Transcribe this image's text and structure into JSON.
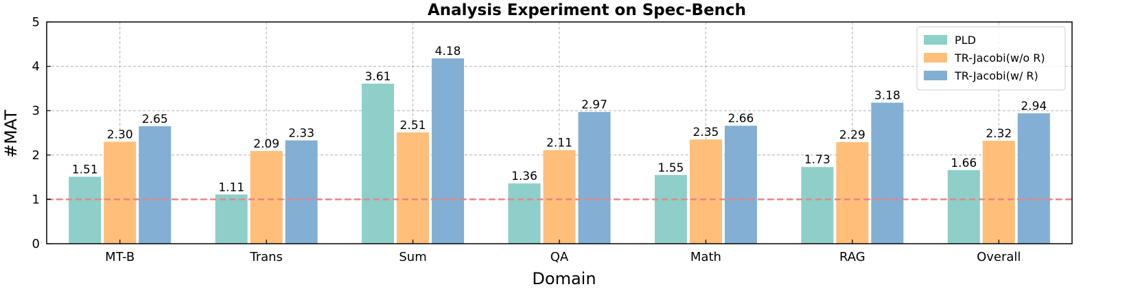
{
  "chart_data": {
    "type": "bar",
    "title": "Analysis Experiment on Spec-Bench",
    "xlabel": "Domain",
    "ylabel": "#MAT",
    "ylim": [
      0,
      5
    ],
    "yticks": [
      0,
      1,
      2,
      3,
      4,
      5
    ],
    "categories": [
      "MT-B",
      "Trans",
      "Sum",
      "QA",
      "Math",
      "RAG",
      "Overall"
    ],
    "series": [
      {
        "name": "PLD",
        "color": "#8ecfc9",
        "values": [
          1.51,
          1.11,
          3.61,
          1.36,
          1.55,
          1.73,
          1.66
        ],
        "labels": [
          "1.51",
          "1.11",
          "3.61",
          "1.36",
          "1.55",
          "1.73",
          "1.66"
        ]
      },
      {
        "name": "TR-Jacobi(w/o R)",
        "color": "#ffbe7a",
        "values": [
          2.3,
          2.09,
          2.51,
          2.11,
          2.35,
          2.29,
          2.32
        ],
        "labels": [
          "2.30",
          "2.09",
          "2.51",
          "2.11",
          "2.35",
          "2.29",
          "2.32"
        ]
      },
      {
        "name": "TR-Jacobi(w/ R)",
        "color": "#82afd3",
        "values": [
          2.65,
          2.33,
          4.18,
          2.97,
          2.66,
          3.18,
          2.94
        ],
        "labels": [
          "2.65",
          "2.33",
          "4.18",
          "2.97",
          "2.66",
          "3.18",
          "2.94"
        ]
      }
    ],
    "reference_line": {
      "y": 1,
      "color": "#e88484",
      "style": "dashed"
    },
    "grid": true,
    "legend": "top-right"
  }
}
